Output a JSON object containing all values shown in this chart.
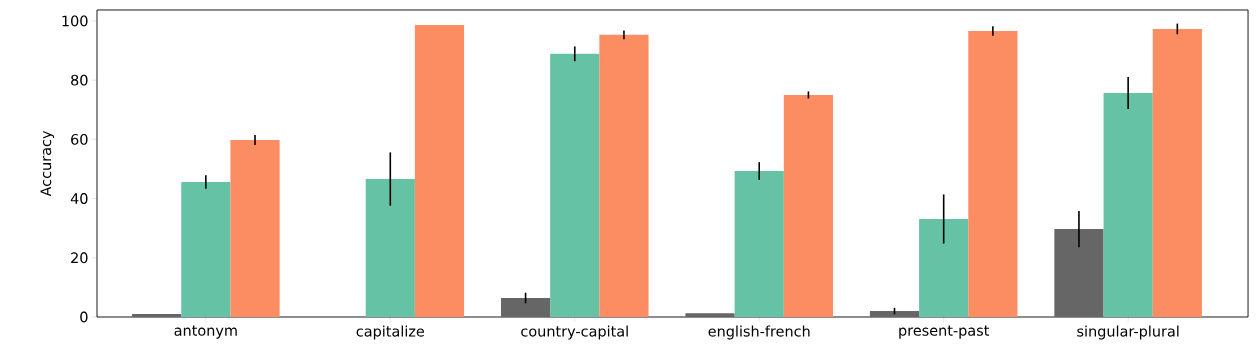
{
  "chart_data": {
    "type": "bar",
    "ylabel": "Accuracy",
    "categories": [
      "antonym",
      "capitalize",
      "country-capital",
      "english-french",
      "present-past",
      "singular-plural"
    ],
    "series": [
      {
        "color": "#666666",
        "values": [
          1.0,
          0,
          6.4,
          1.3,
          2.0,
          29.7
        ],
        "errors": [
          null,
          null,
          1.8,
          null,
          1.1,
          6.1
        ]
      },
      {
        "color": "#66c2a5",
        "values": [
          45.6,
          46.6,
          88.9,
          49.3,
          33.1,
          75.7
        ],
        "errors": [
          2.3,
          9.0,
          2.5,
          3.0,
          8.3,
          5.4
        ]
      },
      {
        "color": "#fc8d62",
        "values": [
          59.8,
          98.6,
          95.3,
          75.0,
          96.6,
          97.3
        ],
        "errors": [
          1.7,
          null,
          1.5,
          1.2,
          1.6,
          1.8
        ]
      }
    ],
    "ylim": [
      0,
      103.7
    ],
    "yticks": [
      0,
      20,
      40,
      60,
      80,
      100
    ],
    "grid": false
  }
}
